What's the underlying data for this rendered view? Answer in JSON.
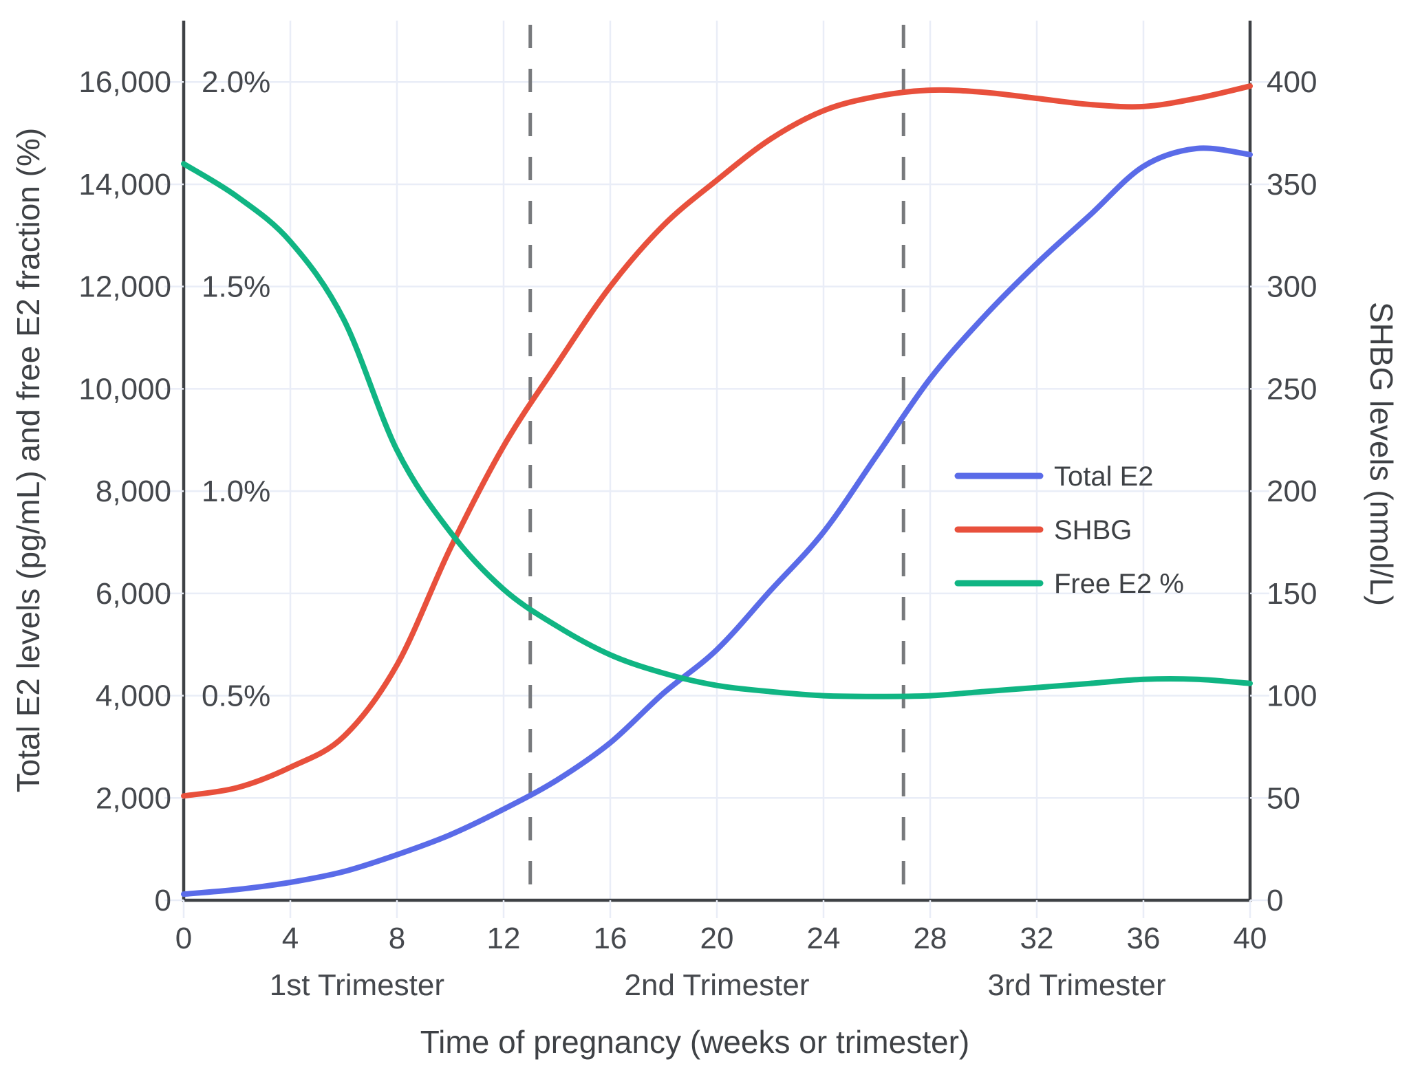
{
  "figure": {
    "kind": "static line chart",
    "background": "#ffffff"
  },
  "chart_data": {
    "type": "line",
    "title": "",
    "xlabel": "Time of pregnancy (weeks or trimester)",
    "ylabel_left": "Total E2 levels (pg/mL) and free E2 fraction (%)",
    "ylabel_right": "SHBG levels (nmol/L)",
    "x_weeks": [
      0,
      2,
      4,
      6,
      8,
      10,
      12,
      14,
      16,
      18,
      20,
      22,
      24,
      26,
      28,
      30,
      32,
      34,
      36,
      38,
      40
    ],
    "series": [
      {
        "name": "Total E2",
        "axis": "left",
        "unit": "pg/mL",
        "color": "#5a6be8",
        "values": [
          120,
          210,
          350,
          560,
          890,
          1280,
          1780,
          2350,
          3080,
          4050,
          4900,
          6050,
          7200,
          8700,
          10200,
          11400,
          12450,
          13400,
          14350,
          14700,
          14580
        ]
      },
      {
        "name": "SHBG",
        "axis": "right",
        "unit": "nmol/L",
        "color": "#e8503c",
        "values": [
          51,
          55,
          65,
          80,
          115,
          172,
          222,
          262,
          300,
          330,
          352,
          372,
          386,
          393,
          396,
          395,
          392,
          389,
          388,
          392,
          398
        ]
      },
      {
        "name": "Free E2 %",
        "axis": "percent",
        "unit": "%",
        "color": "#10b583",
        "values": [
          1.8,
          1.72,
          1.61,
          1.42,
          1.1,
          0.9,
          0.76,
          0.67,
          0.6,
          0.555,
          0.525,
          0.51,
          0.5,
          0.498,
          0.5,
          0.51,
          0.52,
          0.53,
          0.54,
          0.54,
          0.53
        ]
      }
    ],
    "axes": {
      "x": {
        "label": "Time of pregnancy (weeks or trimester)",
        "range": [
          0,
          40
        ],
        "ticks": [
          {
            "v": 0,
            "label": "0"
          },
          {
            "v": 4,
            "label": "4"
          },
          {
            "v": 8,
            "label": "8"
          },
          {
            "v": 12,
            "label": "12"
          },
          {
            "v": 16,
            "label": "16"
          },
          {
            "v": 20,
            "label": "20"
          },
          {
            "v": 24,
            "label": "24"
          },
          {
            "v": 28,
            "label": "28"
          },
          {
            "v": 32,
            "label": "32"
          },
          {
            "v": 36,
            "label": "36"
          },
          {
            "v": 40,
            "label": "40"
          }
        ]
      },
      "left": {
        "label": "Total E2 levels (pg/mL) and free E2 fraction (%)",
        "range": [
          0,
          17200
        ],
        "ticks": [
          {
            "v": 0,
            "label": "0"
          },
          {
            "v": 2000,
            "label": "2,000"
          },
          {
            "v": 4000,
            "label": "4,000"
          },
          {
            "v": 6000,
            "label": "6,000"
          },
          {
            "v": 8000,
            "label": "8,000"
          },
          {
            "v": 10000,
            "label": "10,000"
          },
          {
            "v": 12000,
            "label": "12,000"
          },
          {
            "v": 14000,
            "label": "14,000"
          },
          {
            "v": 16000,
            "label": "16,000"
          }
        ],
        "percent_ticks": [
          {
            "v": 4000,
            "label": "0.5%"
          },
          {
            "v": 8000,
            "label": "1.0%"
          },
          {
            "v": 12000,
            "label": "1.5%"
          },
          {
            "v": 16000,
            "label": "2.0%"
          }
        ],
        "percent_to_left_units": 8000
      },
      "right": {
        "label": "SHBG levels (nmol/L)",
        "range": [
          0,
          430
        ],
        "ticks": [
          {
            "v": 0,
            "label": "0"
          },
          {
            "v": 50,
            "label": "50"
          },
          {
            "v": 100,
            "label": "100"
          },
          {
            "v": 150,
            "label": "150"
          },
          {
            "v": 200,
            "label": "200"
          },
          {
            "v": 250,
            "label": "250"
          },
          {
            "v": 300,
            "label": "300"
          },
          {
            "v": 350,
            "label": "350"
          },
          {
            "v": 400,
            "label": "400"
          }
        ],
        "right_to_left_units": 40
      }
    },
    "trimester_divider_weeks": [
      13,
      27
    ],
    "trimesters": [
      {
        "label": "1st Trimester",
        "mid_week": 6.5
      },
      {
        "label": "2nd Trimester",
        "mid_week": 20
      },
      {
        "label": "3rd Trimester",
        "mid_week": 33.5
      }
    ],
    "legend": {
      "position": "center-right",
      "items": [
        "Total E2",
        "SHBG",
        "Free E2 %"
      ]
    },
    "grid": {
      "show": true,
      "color": "#e9edf7",
      "x_step_weeks": 4,
      "y_step_left_units": 2000
    },
    "style_colors": {
      "axis_line": "#3e4145",
      "tick_text": "#45484d",
      "dashed_divider": "#77797c",
      "total_e2": "#5a6be8",
      "shbg": "#e8503c",
      "free_e2": "#10b583"
    }
  }
}
